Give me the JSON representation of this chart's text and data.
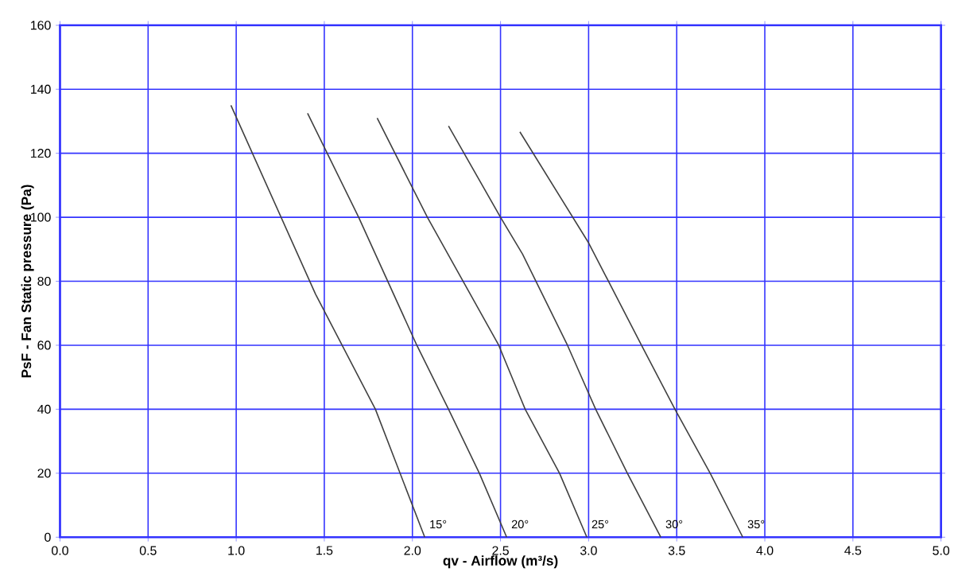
{
  "chart_data": {
    "type": "line",
    "xlabel": "qv - Airflow (m³/s)",
    "ylabel": "PsF - Fan Static pressure (Pa)",
    "xlim": [
      0,
      5
    ],
    "ylim": [
      0,
      160
    ],
    "xticks": [
      {
        "value": 0,
        "label": "0.0"
      },
      {
        "value": 0.5,
        "label": "0.5"
      },
      {
        "value": 1,
        "label": "1.0"
      },
      {
        "value": 1.5,
        "label": "1.5"
      },
      {
        "value": 2,
        "label": "2.0"
      },
      {
        "value": 2.5,
        "label": "2.5"
      },
      {
        "value": 3,
        "label": "3.0"
      },
      {
        "value": 3.5,
        "label": "3.5"
      },
      {
        "value": 4,
        "label": "4.0"
      },
      {
        "value": 4.5,
        "label": "4.5"
      },
      {
        "value": 5,
        "label": "5.0"
      }
    ],
    "yticks": [
      0,
      20,
      40,
      60,
      80,
      100,
      120,
      140,
      160
    ],
    "grid": true,
    "legend": false,
    "marker": "none",
    "line_style": "solid",
    "series": [
      {
        "name": "15°",
        "color": "#404040",
        "x": [
          0.97,
          1.45,
          1.79,
          2.07
        ],
        "values": [
          135,
          76,
          40,
          0
        ]
      },
      {
        "name": "20°",
        "color": "#404040",
        "x": [
          1.405,
          1.695,
          2.025,
          2.205,
          2.38,
          2.535
        ],
        "values": [
          132.5,
          100,
          60,
          40,
          20,
          0
        ]
      },
      {
        "name": "25°",
        "color": "#404040",
        "x": [
          1.8,
          2.085,
          2.49,
          2.64,
          2.835,
          2.99
        ],
        "values": [
          131,
          100,
          60,
          40,
          20,
          0
        ]
      },
      {
        "name": "30°",
        "color": "#404040",
        "x": [
          2.205,
          2.5,
          2.625,
          2.88,
          3.04,
          3.22,
          3.41
        ],
        "values": [
          128.5,
          100,
          88.5,
          60,
          40,
          20,
          0
        ]
      },
      {
        "name": "35°",
        "color": "#404040",
        "x": [
          2.61,
          3.0,
          3.3,
          3.49,
          3.69,
          3.875
        ],
        "values": [
          126.7,
          92,
          60,
          40,
          20,
          0
        ]
      }
    ]
  }
}
